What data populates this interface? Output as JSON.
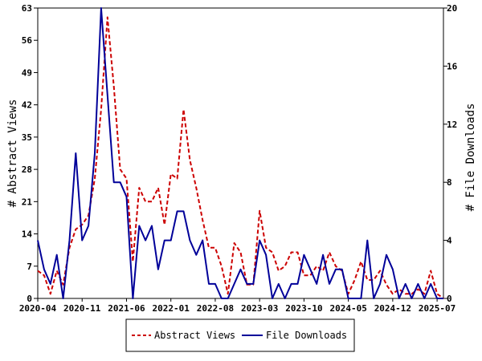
{
  "chart_data": {
    "type": "line",
    "ylabel_left": "# Abstract Views",
    "ylabel_right": "# File Downloads",
    "ylim_left": [
      0,
      63
    ],
    "ylim_right": [
      0,
      20
    ],
    "yticks_left": [
      "0",
      "7",
      "14",
      "21",
      "28",
      "35",
      "42",
      "49",
      "56",
      "63"
    ],
    "yticks_right": [
      "0",
      "4",
      "8",
      "12",
      "16",
      "20"
    ],
    "xticks": [
      "2020-04",
      "2020-11",
      "2021-06",
      "2022-01",
      "2022-08",
      "2023-03",
      "2023-10",
      "2024-05",
      "2024-12",
      "2025-07"
    ],
    "grid": false,
    "legend_position": "bottom",
    "series": [
      {
        "name": "Abstract Views",
        "axis": "left",
        "color": "#cc0000",
        "style": "dashed",
        "values": [
          6,
          5,
          1,
          6,
          3,
          11,
          15,
          16,
          18,
          26,
          41,
          61,
          46,
          28,
          26,
          8,
          24,
          21,
          21,
          24,
          16,
          27,
          26,
          41,
          30,
          24,
          17,
          11,
          11,
          7,
          1,
          12,
          10,
          3,
          3,
          19,
          11,
          10,
          6,
          7,
          10,
          10,
          5,
          5,
          7,
          6,
          10,
          7,
          6,
          1,
          4,
          8,
          4,
          4,
          6,
          3,
          1,
          2,
          1,
          1,
          2,
          1,
          6,
          1,
          0
        ]
      },
      {
        "name": "File Downloads",
        "axis": "right",
        "color": "#000099",
        "style": "solid",
        "values": [
          4,
          2,
          1,
          3,
          0,
          4,
          10,
          4,
          5,
          10,
          20,
          14,
          8,
          8,
          7,
          0,
          5,
          4,
          5,
          2,
          4,
          4,
          6,
          6,
          4,
          3,
          4,
          1,
          1,
          0,
          0,
          1,
          2,
          1,
          1,
          4,
          3,
          0,
          1,
          0,
          1,
          1,
          3,
          2,
          1,
          3,
          1,
          2,
          2,
          0,
          0,
          0,
          4,
          0,
          1,
          3,
          2,
          0,
          1,
          0,
          1,
          0,
          1,
          0,
          0
        ]
      }
    ]
  }
}
